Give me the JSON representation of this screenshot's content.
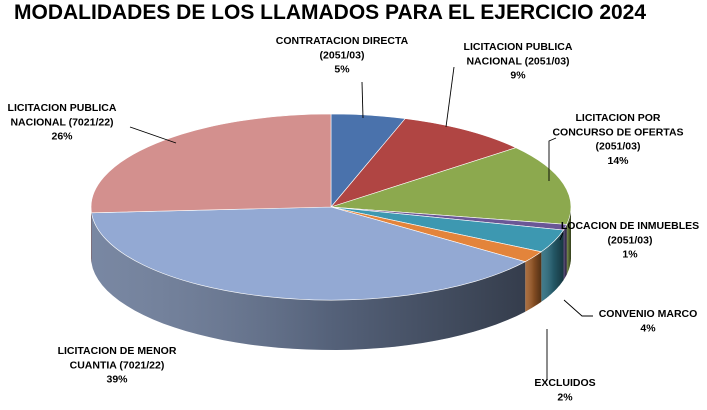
{
  "chart_data": {
    "type": "pie",
    "title": "MODALIDADES DE LOS LLAMADOS PARA EL EJERCICIO 2024",
    "slices": [
      {
        "label": [
          "CONTRATACION DIRECTA",
          "(2051/03)"
        ],
        "percent": "5%",
        "value": 5,
        "color": "#4a72ac"
      },
      {
        "label": [
          "LICITACION PUBLICA",
          "NACIONAL (2051/03)"
        ],
        "percent": "9%",
        "value": 9,
        "color": "#b04543"
      },
      {
        "label": [
          "LICITACION POR",
          "CONCURSO DE OFERTAS",
          "(2051/03)"
        ],
        "percent": "14%",
        "value": 14,
        "color": "#8ca94e"
      },
      {
        "label": [
          "LOCACION DE INMUEBLES",
          "(2051/03)"
        ],
        "percent": "1%",
        "value": 1,
        "color": "#6a5796"
      },
      {
        "label": [
          "CONVENIO MARCO"
        ],
        "percent": "4%",
        "value": 4,
        "color": "#3d98b1"
      },
      {
        "label": [
          "EXCLUIDOS"
        ],
        "percent": "2%",
        "value": 2,
        "color": "#e3843b"
      },
      {
        "label": [
          "LICITACION DE MENOR",
          "CUANTIA (7021/22)"
        ],
        "percent": "39%",
        "value": 39,
        "color": "#93a9d3"
      },
      {
        "label": [
          "LICITACION PUBLICA",
          "NACIONAL (7021/22)"
        ],
        "percent": "26%",
        "value": 26,
        "color": "#d3908e"
      }
    ]
  }
}
